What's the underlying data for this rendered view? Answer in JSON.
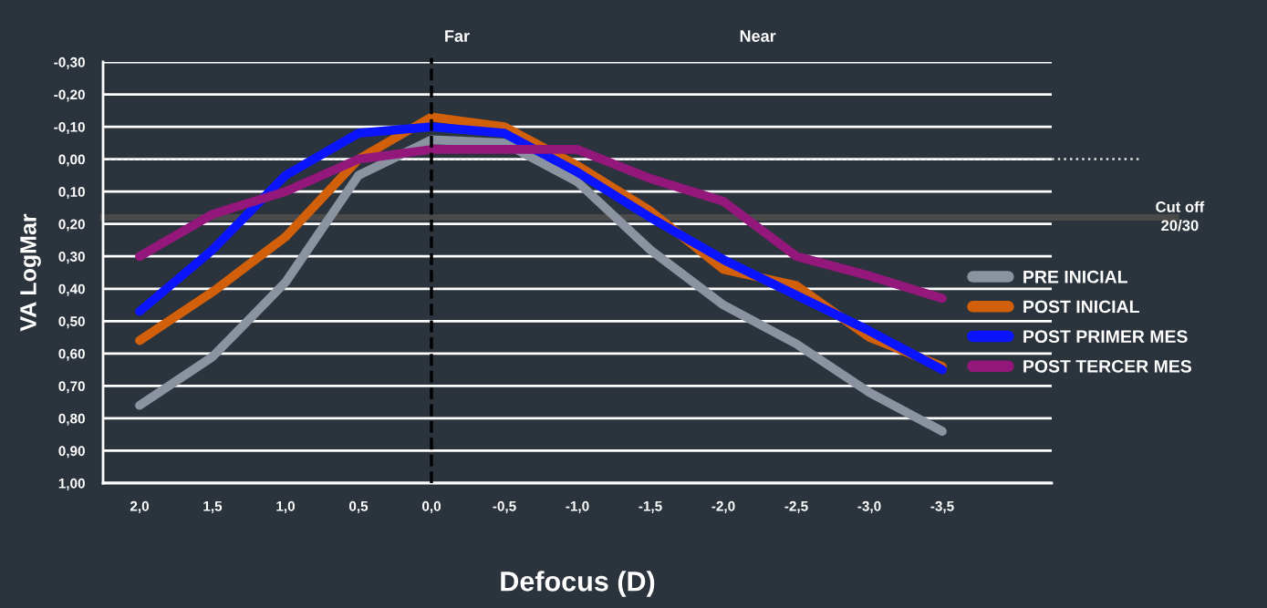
{
  "chart_data": {
    "type": "line",
    "xlabel": "Defocus (D)",
    "ylabel": "VA LogMar",
    "categories": [
      "2,0",
      "1,5",
      "1,0",
      "0,5",
      "0,0",
      "-0,5",
      "-1,0",
      "-1,5",
      "-2,0",
      "-2,5",
      "-3,0",
      "-3,5",
      null
    ],
    "series": [
      {
        "name": "PRE INICIAL",
        "color": "#8a939f",
        "values": [
          0.76,
          0.61,
          0.38,
          0.05,
          -0.06,
          -0.05,
          0.07,
          0.28,
          0.45,
          0.57,
          0.72,
          0.84,
          null
        ]
      },
      {
        "name": "POST INICIAL",
        "color": "#d2600a",
        "values": [
          0.56,
          0.41,
          0.24,
          0.0,
          -0.13,
          -0.1,
          0.02,
          0.16,
          0.34,
          0.39,
          0.55,
          0.64,
          null
        ]
      },
      {
        "name": "POST PRIMER MES",
        "color": "#0a14ff",
        "values": [
          0.47,
          0.28,
          0.05,
          -0.08,
          -0.1,
          -0.08,
          0.04,
          0.18,
          0.31,
          0.42,
          0.53,
          0.65,
          null
        ]
      },
      {
        "name": "POST TERCER MES",
        "color": "#94177c",
        "values": [
          0.3,
          0.17,
          0.1,
          0.0,
          -0.03,
          -0.03,
          -0.03,
          0.06,
          0.13,
          0.3,
          0.36,
          0.43,
          null
        ]
      }
    ],
    "ylim": [
      1.0,
      -0.3
    ],
    "yticks": [
      {
        "value": -0.3,
        "label": "-0,30"
      },
      {
        "value": -0.2,
        "label": "-0,20"
      },
      {
        "value": -0.1,
        "label": "-0,10"
      },
      {
        "value": 0.0,
        "label": "0,00"
      },
      {
        "value": 0.1,
        "label": "0,10"
      },
      {
        "value": 0.2,
        "label": "0,20"
      },
      {
        "value": 0.3,
        "label": "0,30"
      },
      {
        "value": 0.4,
        "label": "0,40"
      },
      {
        "value": 0.5,
        "label": "0,50"
      },
      {
        "value": 0.6,
        "label": "0,60"
      },
      {
        "value": 0.7,
        "label": "0,70"
      },
      {
        "value": 0.8,
        "label": "0,80"
      },
      {
        "value": 0.9,
        "label": "0,90"
      },
      {
        "value": 1.0,
        "label": "1,00"
      }
    ],
    "ref_lines": [
      {
        "axis": "x",
        "value": "0,0",
        "label": "Far",
        "color": "#000000",
        "line_style": "dashed"
      },
      {
        "axis": "y",
        "value": 0.0,
        "label": null,
        "color": "#e0e0e0",
        "line_style": "dotted"
      },
      {
        "axis": "y",
        "value": 0.18,
        "label": "Cut off\n20/30",
        "color": "#4a4a4a",
        "line_style": "solid"
      }
    ],
    "annotations": [
      "Near"
    ],
    "grid": "y",
    "legend": "right",
    "marker": "none",
    "line_style": "solid"
  }
}
